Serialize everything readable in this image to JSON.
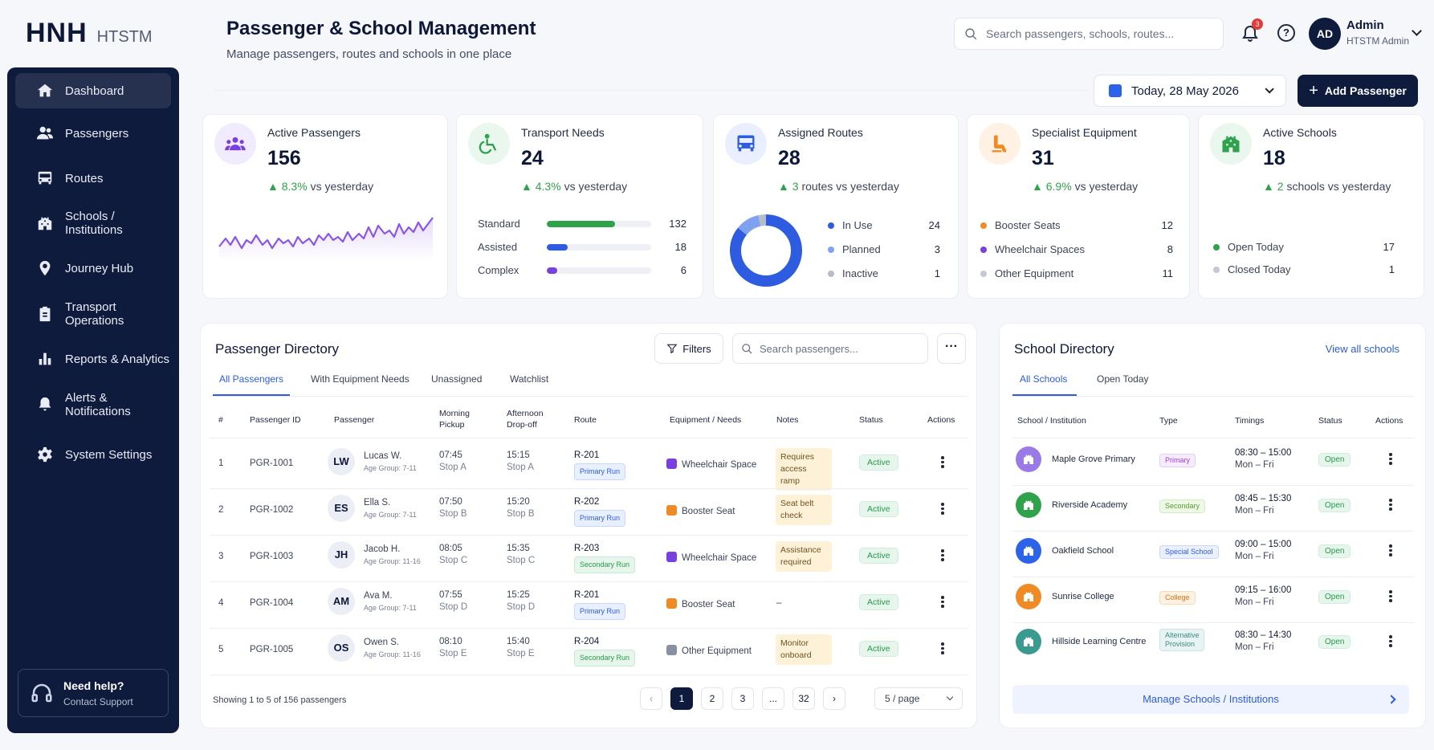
{
  "brand": {
    "logo": "HNH",
    "product": "HTSTM"
  },
  "sidebar": {
    "items": [
      {
        "label": "Dashboard",
        "icon": "home-icon"
      },
      {
        "label": "Passengers",
        "icon": "users-icon"
      },
      {
        "label": "Routes",
        "icon": "bus-icon"
      },
      {
        "label": "Schools / Institutions",
        "icon": "building-icon"
      },
      {
        "label": "Journey Hub",
        "icon": "map-pin-icon"
      },
      {
        "label": "Transport Operations",
        "icon": "clipboard-icon"
      },
      {
        "label": "Reports & Analytics",
        "icon": "bar-chart-icon"
      },
      {
        "label": "Alerts & Notifications",
        "icon": "bell-icon"
      },
      {
        "label": "System Settings",
        "icon": "gear-icon"
      }
    ],
    "help": {
      "title": "Need help?",
      "subtitle": "Contact Support"
    }
  },
  "header": {
    "title": "Passenger & School Management",
    "subtitle": "Manage passengers, routes and schools in one place",
    "search_placeholder": "Search passengers, schools, routes...",
    "notification_count": "3",
    "user": {
      "initials": "AD",
      "name": "Admin",
      "role": "HTSTM Admin"
    },
    "date_label": "Today, 28 May 2026",
    "add_button": "Add Passenger"
  },
  "colors": {
    "navy": "#0e1b3d",
    "accent": "#2d5ce0",
    "positive": "#2fa24c",
    "purple": "#7a3fe0",
    "orange": "#f08a24"
  },
  "kpis": {
    "active_passengers": {
      "label": "Active Passengers",
      "value": "156",
      "trend": "8.3%",
      "trend_text": "vs yesterday"
    },
    "transport_needs": {
      "label": "Transport Needs",
      "value": "24",
      "trend": "4.3%",
      "trend_text": "vs yesterday",
      "rows": [
        {
          "label": "Standard",
          "value": "132",
          "level": 0.65,
          "color": "#2fa24c"
        },
        {
          "label": "Assisted",
          "value": "18",
          "level": 0.2,
          "color": "#2d5ce0"
        },
        {
          "label": "Complex",
          "value": "6",
          "level": 0.1,
          "color": "#7a3fe0"
        }
      ]
    },
    "assigned_routes": {
      "label": "Assigned Routes",
      "value": "28",
      "trend": "3",
      "trend_text": "routes vs yesterday",
      "rows": [
        {
          "label": "In Use",
          "value": "24",
          "color": "#2d5ce0"
        },
        {
          "label": "Planned",
          "value": "3",
          "color": "#7fa2f0"
        },
        {
          "label": "Inactive",
          "value": "1",
          "color": "#b6bcc9"
        }
      ]
    },
    "specialist_equipment": {
      "label": "Specialist Equipment",
      "value": "31",
      "trend": "6.9%",
      "trend_text": "vs yesterday",
      "rows": [
        {
          "label": "Booster Seats",
          "value": "12",
          "color": "#f08a24"
        },
        {
          "label": "Wheelchair Spaces",
          "value": "8",
          "color": "#7a3fe0"
        },
        {
          "label": "Other Equipment",
          "value": "11",
          "color": "#c3c8d4"
        }
      ]
    },
    "active_schools": {
      "label": "Active Schools",
      "value": "18",
      "trend": "2",
      "trend_text": "schools vs yesterday",
      "rows": [
        {
          "label": "Open Today",
          "value": "17",
          "color": "#2fa24c"
        },
        {
          "label": "Closed Today",
          "value": "1",
          "color": "#c3c8d4"
        }
      ]
    }
  },
  "passenger_directory": {
    "title": "Passenger Directory",
    "filters_label": "Filters",
    "search_placeholder": "Search passengers...",
    "more_label": "···",
    "tabs": [
      "All Passengers",
      "With Equipment Needs",
      "Unassigned",
      "Watchlist"
    ],
    "columns": [
      "#",
      "Passenger ID",
      "Passenger",
      "Morning Pickup",
      "Afternoon Drop-off",
      "Route",
      "Equipment / Needs",
      "Notes",
      "Status",
      "Actions"
    ],
    "rows": [
      {
        "n": "1",
        "id": "PGR-1001",
        "initials": "LW",
        "name": "Lucas W.",
        "age": "Age Group: 7-11",
        "am_time": "07:45",
        "am_stop": "Stop A",
        "pm_time": "15:15",
        "pm_stop": "Stop A",
        "route": "R-201",
        "run": "Primary Run",
        "equipment": "Wheelchair Space",
        "note": "Requires access ramp",
        "status": "Active"
      },
      {
        "n": "2",
        "id": "PGR-1002",
        "initials": "ES",
        "name": "Ella S.",
        "age": "Age Group: 7-11",
        "am_time": "07:50",
        "am_stop": "Stop B",
        "pm_time": "15:20",
        "pm_stop": "Stop B",
        "route": "R-202",
        "run": "Primary Run",
        "equipment": "Booster Seat",
        "note": "Seat belt check",
        "status": "Active"
      },
      {
        "n": "3",
        "id": "PGR-1003",
        "initials": "JH",
        "name": "Jacob H.",
        "age": "Age Group: 11-16",
        "am_time": "08:05",
        "am_stop": "Stop C",
        "pm_time": "15:35",
        "pm_stop": "Stop C",
        "route": "R-203",
        "run": "Secondary Run",
        "equipment": "Wheelchair Space",
        "note": "Assistance required",
        "status": "Active"
      },
      {
        "n": "4",
        "id": "PGR-1004",
        "initials": "AM",
        "name": "Ava M.",
        "age": "Age Group: 7-11",
        "am_time": "07:55",
        "am_stop": "Stop D",
        "pm_time": "15:25",
        "pm_stop": "Stop D",
        "route": "R-201",
        "run": "Primary Run",
        "equipment": "Booster Seat",
        "note": "–",
        "status": "Active"
      },
      {
        "n": "5",
        "id": "PGR-1005",
        "initials": "OS",
        "name": "Owen S.",
        "age": "Age Group: 11-16",
        "am_time": "08:10",
        "am_stop": "Stop E",
        "pm_time": "15:40",
        "pm_stop": "Stop E",
        "route": "R-204",
        "run": "Secondary Run",
        "equipment": "Other Equipment",
        "note": "Monitor onboard",
        "status": "Active"
      }
    ],
    "showing": "Showing 1 to 5 of 156 passengers",
    "pages": [
      "1",
      "2",
      "3",
      "...",
      "32"
    ],
    "prev": "‹",
    "next": "›",
    "per_page": "5 / page"
  },
  "school_directory": {
    "title": "School Directory",
    "view_all": "View all schools",
    "tabs": [
      "All Schools",
      "Open Today"
    ],
    "columns": [
      "School / Institution",
      "Type",
      "Timings",
      "Status",
      "Actions"
    ],
    "rows": [
      {
        "name": "Maple Grove Primary",
        "type": "Primary",
        "time": "08:30 – 15:00",
        "days": "Mon – Fri",
        "status": "Open"
      },
      {
        "name": "Riverside Academy",
        "type": "Secondary",
        "time": "08:45 – 15:30",
        "days": "Mon – Fri",
        "status": "Open"
      },
      {
        "name": "Oakfield School",
        "type": "Special School",
        "time": "09:00 – 15:00",
        "days": "Mon – Fri",
        "status": "Open"
      },
      {
        "name": "Sunrise College",
        "type": "College",
        "time": "09:15 – 16:00",
        "days": "Mon – Fri",
        "status": "Open"
      },
      {
        "name": "Hillside Learning Centre",
        "type": "Alternative Provision",
        "time": "08:30 – 14:30",
        "days": "Mon – Fri",
        "status": "Open"
      }
    ],
    "manage_label": "Manage Schools / Institutions"
  }
}
